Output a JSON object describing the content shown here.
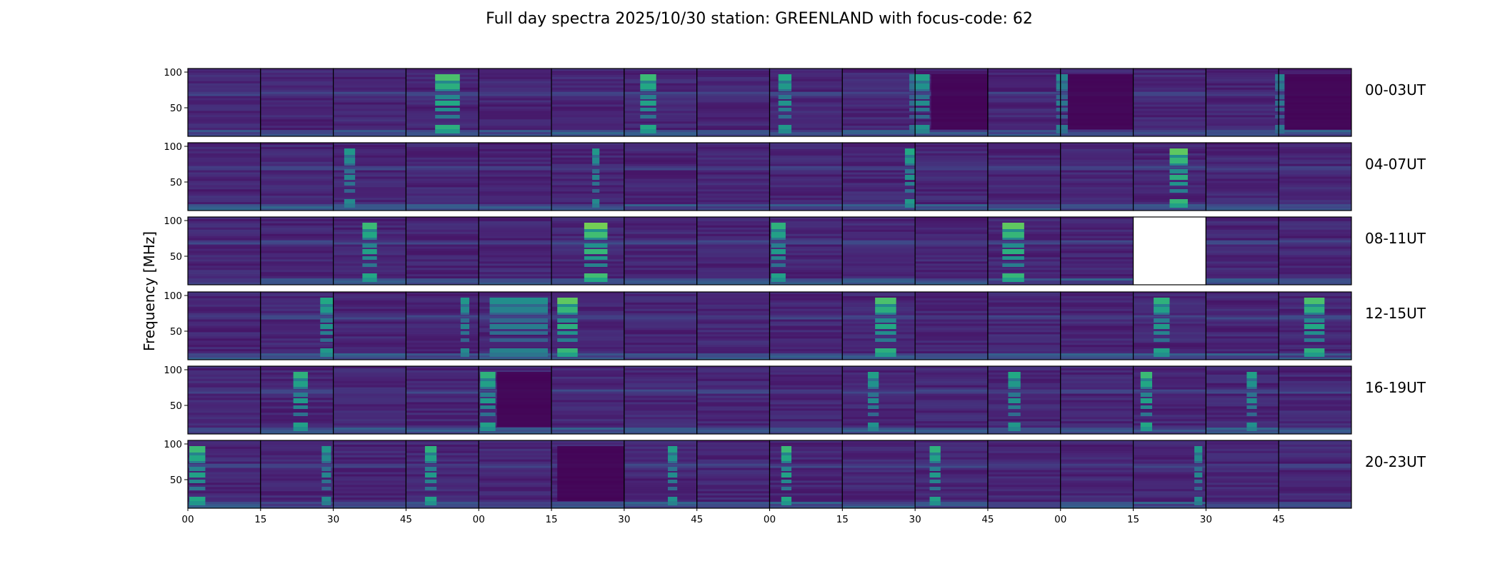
{
  "chart_data": {
    "type": "heatmap",
    "title": "Full day spectra 2025/10/30 station: GREENLAND with focus-code: 62",
    "ylabel": "Frequency [MHz]",
    "xlabel": "",
    "yticks": [
      50,
      100
    ],
    "ylim": [
      10,
      105
    ],
    "xtick_labels": [
      "00",
      "15",
      "30",
      "45",
      "00",
      "15",
      "30",
      "45",
      "00",
      "15",
      "30",
      "45",
      "00",
      "15",
      "30",
      "45"
    ],
    "colormap": "viridis",
    "panels_per_row": 16,
    "minutes_per_panel": 15,
    "rows": [
      {
        "label": "00-03UT",
        "bursts": [
          {
            "panel": 3,
            "start": 0.4,
            "end": 0.74,
            "intensity": 0.75
          },
          {
            "panel": 6,
            "start": 0.22,
            "end": 0.44,
            "intensity": 0.7
          },
          {
            "panel": 8,
            "start": 0.12,
            "end": 0.3,
            "intensity": 0.6
          },
          {
            "panel": 9,
            "start": 0.92,
            "end": 1.0,
            "intensity": 0.35
          },
          {
            "panel": 10,
            "start": 0.0,
            "end": 0.2,
            "intensity": 0.55
          },
          {
            "panel": 11,
            "start": 0.94,
            "end": 1.0,
            "intensity": 0.45
          },
          {
            "panel": 12,
            "start": 0.0,
            "end": 0.1,
            "intensity": 0.4
          },
          {
            "panel": 14,
            "start": 0.95,
            "end": 1.0,
            "intensity": 0.35
          },
          {
            "panel": 15,
            "start": 0.0,
            "end": 0.08,
            "intensity": 0.4
          }
        ],
        "dark_regions": [
          {
            "panel": 10,
            "start": 0.22,
            "end": 1.0
          },
          {
            "panel": 12,
            "start": 0.1,
            "end": 1.0
          },
          {
            "panel": 15,
            "start": 0.08,
            "end": 1.0
          }
        ],
        "blank_panels": []
      },
      {
        "label": "04-07UT",
        "bursts": [
          {
            "panel": 2,
            "start": 0.15,
            "end": 0.3,
            "intensity": 0.5
          },
          {
            "panel": 5,
            "start": 0.56,
            "end": 0.66,
            "intensity": 0.5
          },
          {
            "panel": 9,
            "start": 0.86,
            "end": 1.0,
            "intensity": 0.6
          },
          {
            "panel": 13,
            "start": 0.5,
            "end": 0.75,
            "intensity": 0.8
          }
        ],
        "dark_regions": [],
        "blank_panels": []
      },
      {
        "label": "08-11UT",
        "bursts": [
          {
            "panel": 2,
            "start": 0.4,
            "end": 0.6,
            "intensity": 0.7
          },
          {
            "panel": 5,
            "start": 0.45,
            "end": 0.77,
            "intensity": 0.85
          },
          {
            "panel": 8,
            "start": 0.02,
            "end": 0.22,
            "intensity": 0.65
          },
          {
            "panel": 11,
            "start": 0.2,
            "end": 0.5,
            "intensity": 0.8
          }
        ],
        "dark_regions": [],
        "blank_panels": [
          13
        ]
      },
      {
        "label": "12-15UT",
        "bursts": [
          {
            "panel": 1,
            "start": 0.82,
            "end": 1.0,
            "intensity": 0.6
          },
          {
            "panel": 3,
            "start": 0.75,
            "end": 0.87,
            "intensity": 0.5
          },
          {
            "panel": 4,
            "start": 0.15,
            "end": 0.95,
            "intensity": 0.45
          },
          {
            "panel": 5,
            "start": 0.08,
            "end": 0.36,
            "intensity": 0.8
          },
          {
            "panel": 9,
            "start": 0.45,
            "end": 0.74,
            "intensity": 0.75
          },
          {
            "panel": 13,
            "start": 0.28,
            "end": 0.5,
            "intensity": 0.65
          },
          {
            "panel": 15,
            "start": 0.35,
            "end": 0.63,
            "intensity": 0.75
          }
        ],
        "dark_regions": [],
        "blank_panels": []
      },
      {
        "label": "16-19UT",
        "bursts": [
          {
            "panel": 1,
            "start": 0.45,
            "end": 0.65,
            "intensity": 0.65
          },
          {
            "panel": 4,
            "start": 0.02,
            "end": 0.23,
            "intensity": 0.65
          },
          {
            "panel": 9,
            "start": 0.35,
            "end": 0.5,
            "intensity": 0.55
          },
          {
            "panel": 11,
            "start": 0.28,
            "end": 0.45,
            "intensity": 0.6
          },
          {
            "panel": 13,
            "start": 0.1,
            "end": 0.26,
            "intensity": 0.7
          },
          {
            "panel": 14,
            "start": 0.56,
            "end": 0.7,
            "intensity": 0.55
          }
        ],
        "dark_regions": [
          {
            "panel": 4,
            "start": 0.25,
            "end": 1.0
          }
        ],
        "blank_panels": []
      },
      {
        "label": "20-23UT",
        "bursts": [
          {
            "panel": 0,
            "start": 0.02,
            "end": 0.24,
            "intensity": 0.7
          },
          {
            "panel": 1,
            "start": 0.84,
            "end": 0.97,
            "intensity": 0.5
          },
          {
            "panel": 3,
            "start": 0.26,
            "end": 0.42,
            "intensity": 0.65
          },
          {
            "panel": 6,
            "start": 0.6,
            "end": 0.73,
            "intensity": 0.55
          },
          {
            "panel": 8,
            "start": 0.16,
            "end": 0.3,
            "intensity": 0.7
          },
          {
            "panel": 10,
            "start": 0.2,
            "end": 0.35,
            "intensity": 0.65
          },
          {
            "panel": 13,
            "start": 0.84,
            "end": 0.95,
            "intensity": 0.5
          }
        ],
        "dark_regions": [
          {
            "panel": 5,
            "start": 0.08,
            "end": 1.0
          }
        ],
        "blank_panels": []
      }
    ]
  }
}
